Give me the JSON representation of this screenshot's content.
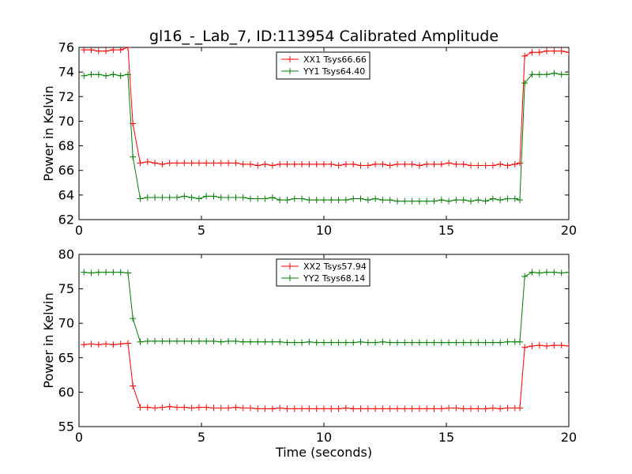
{
  "title": "gl16_-_Lab_7, ID:113954 Calibrated Amplitude",
  "chart_data": [
    {
      "type": "line",
      "xlabel": "",
      "ylabel": "Power in Kelvin",
      "xlim": [
        0,
        20
      ],
      "ylim": [
        62,
        76
      ],
      "xticks": [
        0,
        5,
        10,
        15,
        20
      ],
      "yticks": [
        62,
        64,
        66,
        68,
        70,
        72,
        74,
        76
      ],
      "legend_position": "top-center",
      "x": [
        0.2,
        0.5,
        0.8,
        1.1,
        1.4,
        1.7,
        2.0,
        2.2,
        2.5,
        2.8,
        3.1,
        3.4,
        3.7,
        4.0,
        4.3,
        4.6,
        4.9,
        5.2,
        5.5,
        5.8,
        6.1,
        6.4,
        6.7,
        7.0,
        7.3,
        7.6,
        7.9,
        8.2,
        8.5,
        8.8,
        9.1,
        9.4,
        9.7,
        10.0,
        10.3,
        10.6,
        10.9,
        11.2,
        11.5,
        11.8,
        12.1,
        12.4,
        12.7,
        13.0,
        13.3,
        13.6,
        13.9,
        14.2,
        14.5,
        14.8,
        15.1,
        15.4,
        15.7,
        16.0,
        16.3,
        16.6,
        16.9,
        17.2,
        17.5,
        17.8,
        18.0,
        18.2,
        18.5,
        18.8,
        19.1,
        19.4,
        19.7,
        20.0
      ],
      "series": [
        {
          "name": "XX1 Tsys66.66",
          "color": "#ff0000",
          "values": [
            75.8,
            75.8,
            75.7,
            75.7,
            75.8,
            75.8,
            76.0,
            69.8,
            66.6,
            66.7,
            66.6,
            66.5,
            66.6,
            66.6,
            66.6,
            66.6,
            66.6,
            66.6,
            66.6,
            66.6,
            66.6,
            66.6,
            66.5,
            66.5,
            66.4,
            66.5,
            66.4,
            66.5,
            66.5,
            66.5,
            66.5,
            66.5,
            66.5,
            66.5,
            66.5,
            66.4,
            66.5,
            66.5,
            66.4,
            66.4,
            66.5,
            66.5,
            66.4,
            66.5,
            66.5,
            66.5,
            66.4,
            66.5,
            66.5,
            66.5,
            66.6,
            66.5,
            66.5,
            66.4,
            66.4,
            66.4,
            66.4,
            66.5,
            66.4,
            66.5,
            66.6,
            75.3,
            75.6,
            75.6,
            75.7,
            75.7,
            75.7,
            75.6
          ]
        },
        {
          "name": "YY1 Tsys64.40",
          "color": "#008000",
          "values": [
            73.7,
            73.8,
            73.8,
            73.7,
            73.8,
            73.7,
            73.8,
            67.1,
            63.7,
            63.8,
            63.8,
            63.8,
            63.8,
            63.8,
            63.9,
            63.8,
            63.7,
            63.9,
            63.9,
            63.8,
            63.8,
            63.8,
            63.8,
            63.7,
            63.7,
            63.7,
            63.8,
            63.6,
            63.6,
            63.7,
            63.7,
            63.6,
            63.6,
            63.6,
            63.6,
            63.6,
            63.6,
            63.7,
            63.7,
            63.6,
            63.7,
            63.6,
            63.6,
            63.5,
            63.5,
            63.5,
            63.5,
            63.5,
            63.5,
            63.6,
            63.5,
            63.6,
            63.6,
            63.5,
            63.6,
            63.5,
            63.7,
            63.6,
            63.7,
            63.7,
            63.6,
            73.1,
            73.8,
            73.8,
            73.8,
            73.9,
            73.8,
            73.8
          ]
        }
      ]
    },
    {
      "type": "line",
      "xlabel": "Time (seconds)",
      "ylabel": "Power in Kelvin",
      "xlim": [
        0,
        20
      ],
      "ylim": [
        55,
        80
      ],
      "xticks": [
        0,
        5,
        10,
        15,
        20
      ],
      "yticks": [
        55,
        60,
        65,
        70,
        75,
        80
      ],
      "legend_position": "top-center",
      "x": [
        0.2,
        0.5,
        0.8,
        1.1,
        1.4,
        1.7,
        2.0,
        2.2,
        2.5,
        2.8,
        3.1,
        3.4,
        3.7,
        4.0,
        4.3,
        4.6,
        4.9,
        5.2,
        5.5,
        5.8,
        6.1,
        6.4,
        6.7,
        7.0,
        7.3,
        7.6,
        7.9,
        8.2,
        8.5,
        8.8,
        9.1,
        9.4,
        9.7,
        10.0,
        10.3,
        10.6,
        10.9,
        11.2,
        11.5,
        11.8,
        12.1,
        12.4,
        12.7,
        13.0,
        13.3,
        13.6,
        13.9,
        14.2,
        14.5,
        14.8,
        15.1,
        15.4,
        15.7,
        16.0,
        16.3,
        16.6,
        16.9,
        17.2,
        17.5,
        17.8,
        18.0,
        18.2,
        18.5,
        18.8,
        19.1,
        19.4,
        19.7,
        20.0
      ],
      "series": [
        {
          "name": "XX2 Tsys57.94",
          "color": "#ff0000",
          "values": [
            66.9,
            67.0,
            66.9,
            67.0,
            66.9,
            67.0,
            67.1,
            60.9,
            57.8,
            57.8,
            57.7,
            57.8,
            57.9,
            57.8,
            57.8,
            57.7,
            57.8,
            57.8,
            57.7,
            57.7,
            57.7,
            57.8,
            57.7,
            57.7,
            57.6,
            57.6,
            57.6,
            57.7,
            57.6,
            57.6,
            57.6,
            57.6,
            57.6,
            57.6,
            57.6,
            57.6,
            57.7,
            57.6,
            57.6,
            57.6,
            57.6,
            57.6,
            57.6,
            57.6,
            57.6,
            57.6,
            57.6,
            57.6,
            57.6,
            57.6,
            57.7,
            57.7,
            57.6,
            57.6,
            57.6,
            57.6,
            57.7,
            57.6,
            57.7,
            57.7,
            57.7,
            66.5,
            66.7,
            66.8,
            66.7,
            66.8,
            66.8,
            66.7
          ]
        },
        {
          "name": "YY2 Tsys68.14",
          "color": "#008000",
          "values": [
            77.4,
            77.3,
            77.4,
            77.4,
            77.4,
            77.4,
            77.3,
            70.7,
            67.3,
            67.4,
            67.4,
            67.4,
            67.4,
            67.4,
            67.4,
            67.4,
            67.4,
            67.4,
            67.4,
            67.3,
            67.4,
            67.4,
            67.3,
            67.3,
            67.3,
            67.3,
            67.3,
            67.3,
            67.2,
            67.2,
            67.2,
            67.3,
            67.2,
            67.2,
            67.2,
            67.2,
            67.2,
            67.2,
            67.3,
            67.2,
            67.2,
            67.3,
            67.2,
            67.2,
            67.2,
            67.2,
            67.2,
            67.2,
            67.2,
            67.2,
            67.2,
            67.2,
            67.2,
            67.2,
            67.2,
            67.2,
            67.2,
            67.2,
            67.3,
            67.3,
            67.3,
            76.8,
            77.4,
            77.3,
            77.4,
            77.4,
            77.3,
            77.4
          ]
        }
      ]
    }
  ]
}
